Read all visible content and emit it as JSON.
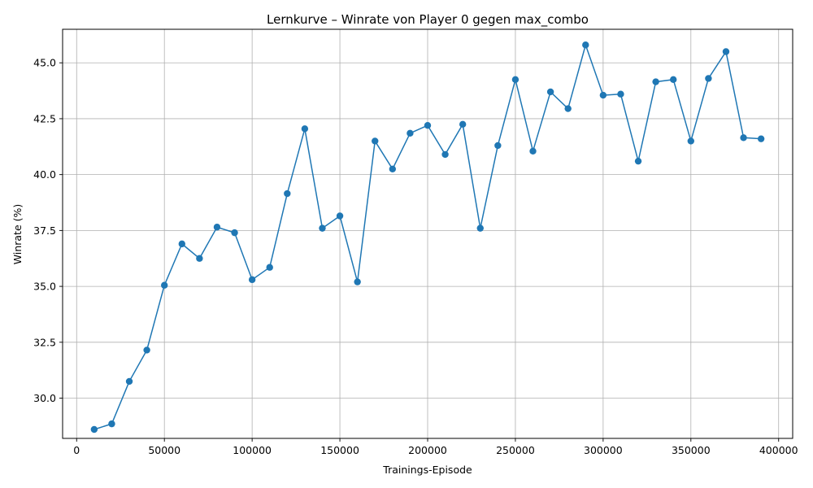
{
  "colors": {
    "line": "#1f77b4",
    "marker": "#1f77b4",
    "grid": "#b0b0b0",
    "background": "#ffffff"
  },
  "chart_data": {
    "type": "line",
    "title": "Lernkurve – Winrate von Player 0 gegen max_combo",
    "xlabel": "Trainings-Episode",
    "ylabel": "Winrate (%)",
    "xlim": [
      -8000,
      408000
    ],
    "ylim": [
      28.2,
      46.5
    ],
    "xticks": [
      0,
      50000,
      100000,
      150000,
      200000,
      250000,
      300000,
      350000,
      400000
    ],
    "yticks": [
      30.0,
      32.5,
      35.0,
      37.5,
      40.0,
      42.5,
      45.0
    ],
    "ytick_labels": [
      "30.0",
      "32.5",
      "35.0",
      "37.5",
      "40.0",
      "42.5",
      "45.0"
    ],
    "grid": true,
    "marker": "circle",
    "x": [
      10000,
      20000,
      30000,
      40000,
      50000,
      60000,
      70000,
      80000,
      90000,
      100000,
      110000,
      120000,
      130000,
      140000,
      150000,
      160000,
      170000,
      180000,
      190000,
      200000,
      210000,
      220000,
      230000,
      240000,
      250000,
      260000,
      270000,
      280000,
      290000,
      300000,
      310000,
      320000,
      330000,
      340000,
      350000,
      360000,
      370000,
      380000,
      390000
    ],
    "y": [
      28.6,
      28.85,
      30.75,
      32.15,
      35.05,
      36.9,
      36.25,
      37.65,
      37.4,
      35.3,
      35.85,
      39.15,
      42.05,
      37.6,
      38.15,
      35.2,
      41.5,
      40.25,
      41.85,
      42.2,
      40.9,
      42.25,
      37.6,
      41.3,
      44.25,
      41.05,
      43.7,
      42.95,
      45.8,
      43.55,
      43.6,
      40.6,
      44.15,
      44.25,
      41.5,
      44.3,
      45.5,
      41.65,
      41.6
    ]
  }
}
